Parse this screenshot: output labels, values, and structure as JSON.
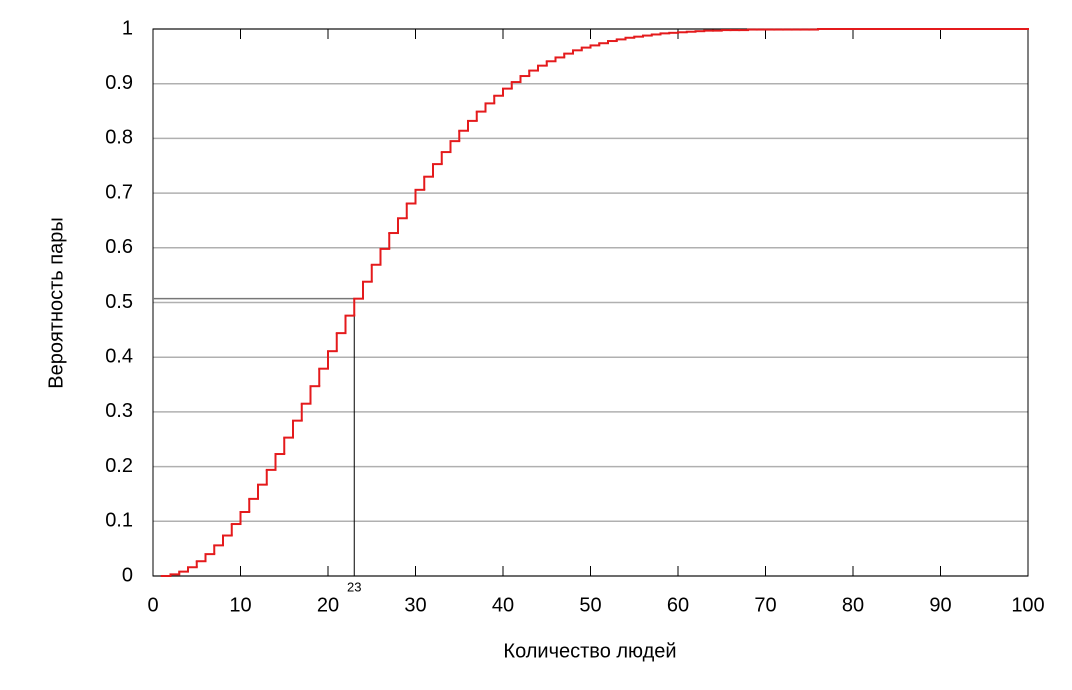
{
  "chart_data": {
    "type": "step",
    "xlabel": "Количество людей",
    "ylabel": "Вероятность пары",
    "x": [
      1,
      2,
      3,
      4,
      5,
      6,
      7,
      8,
      9,
      10,
      11,
      12,
      13,
      14,
      15,
      16,
      17,
      18,
      19,
      20,
      21,
      22,
      23,
      24,
      25,
      26,
      27,
      28,
      29,
      30,
      31,
      32,
      33,
      34,
      35,
      36,
      37,
      38,
      39,
      40,
      41,
      42,
      43,
      44,
      45,
      46,
      47,
      48,
      49,
      50,
      51,
      52,
      53,
      54,
      55,
      56,
      57,
      58,
      59,
      60,
      61,
      62,
      63,
      64,
      65,
      66,
      67,
      68,
      69,
      70,
      71,
      72,
      73,
      74,
      75,
      76,
      77,
      78,
      79,
      80,
      81,
      82,
      83,
      84,
      85,
      86,
      87,
      88,
      89,
      90,
      91,
      92,
      93,
      94,
      95,
      96,
      97,
      98,
      99,
      100
    ],
    "series": [
      {
        "name": null,
        "color": "#e41a1c",
        "values": [
          0,
          0.003,
          0.008,
          0.016,
          0.027,
          0.04,
          0.056,
          0.074,
          0.095,
          0.117,
          0.141,
          0.167,
          0.194,
          0.223,
          0.253,
          0.284,
          0.315,
          0.347,
          0.379,
          0.411,
          0.444,
          0.476,
          0.507,
          0.538,
          0.569,
          0.598,
          0.627,
          0.654,
          0.681,
          0.706,
          0.73,
          0.753,
          0.775,
          0.795,
          0.814,
          0.832,
          0.849,
          0.864,
          0.878,
          0.891,
          0.903,
          0.914,
          0.924,
          0.933,
          0.941,
          0.948,
          0.955,
          0.961,
          0.966,
          0.97,
          0.974,
          0.978,
          0.981,
          0.984,
          0.986,
          0.988,
          0.99,
          0.992,
          0.993,
          0.994,
          0.995,
          0.996,
          0.997,
          0.997,
          0.998,
          0.998,
          0.998,
          0.999,
          0.999,
          0.999,
          0.999,
          0.999,
          0.999,
          0.999,
          0.999,
          1,
          1,
          1,
          1,
          1,
          1,
          1,
          1,
          1,
          1,
          1,
          1,
          1,
          1,
          1,
          1,
          1,
          1,
          1,
          1,
          1,
          1,
          1,
          1,
          1
        ]
      }
    ],
    "reference": {
      "x": 23,
      "y": 0.507
    },
    "xlim": [
      0,
      100
    ],
    "xticks": [
      0,
      10,
      20,
      30,
      40,
      50,
      60,
      70,
      80,
      90,
      100
    ],
    "ylim": [
      0,
      1
    ],
    "yticks": [
      0,
      0.1,
      0.2,
      0.3,
      0.4,
      0.5,
      0.6,
      0.7,
      0.8,
      0.9,
      1
    ],
    "grid": true
  }
}
